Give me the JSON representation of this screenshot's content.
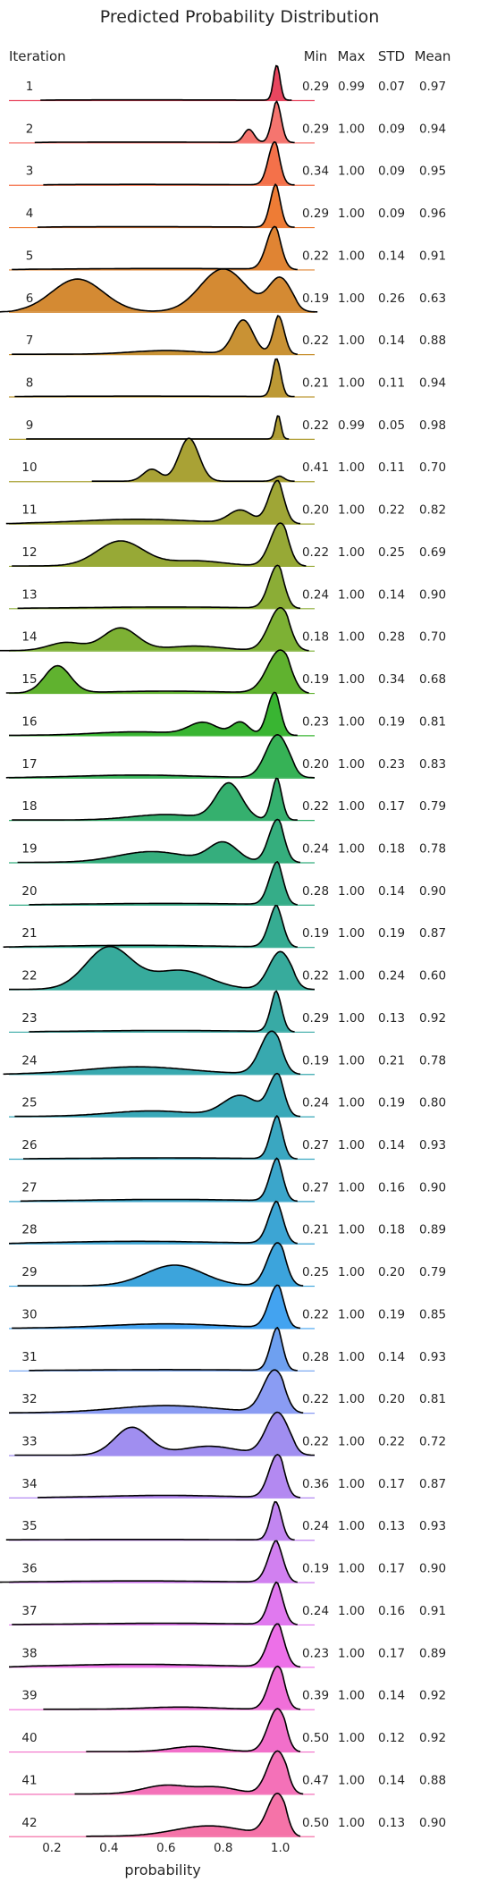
{
  "chart_data": {
    "type": "ridgeline",
    "title": "Predicted Probability Distribution",
    "xlabel": "probability",
    "row_header": "Iteration",
    "stat_headers": [
      "Min",
      "Max",
      "STD",
      "Mean"
    ],
    "xlim": [
      0.05,
      1.12
    ],
    "xticks": [
      0.2,
      0.4,
      0.6,
      0.8,
      1.0
    ],
    "xtick_labels": [
      "0.2",
      "0.4",
      "0.6",
      "0.8",
      "1.0"
    ],
    "grid": false,
    "rows": [
      {
        "label": "1",
        "min": "0.29",
        "max": "0.99",
        "std": "0.07",
        "mean": "0.97",
        "color": "#e8465f",
        "left": 0.16,
        "right": 1.04,
        "comps": [
          [
            0.99,
            0.012,
            1.0
          ],
          [
            0.5,
            0.3,
            0.006
          ]
        ]
      },
      {
        "label": "2",
        "min": "0.29",
        "max": "1.00",
        "std": "0.09",
        "mean": "0.94",
        "color": "#f5756f",
        "left": 0.14,
        "right": 1.05,
        "comps": [
          [
            0.99,
            0.018,
            1.0
          ],
          [
            0.89,
            0.018,
            0.3
          ],
          [
            0.5,
            0.3,
            0.01
          ]
        ]
      },
      {
        "label": "3",
        "min": "0.34",
        "max": "1.00",
        "std": "0.09",
        "mean": "0.95",
        "color": "#f4714a",
        "left": 0.17,
        "right": 1.05,
        "comps": [
          [
            0.98,
            0.022,
            1.0
          ],
          [
            0.5,
            0.3,
            0.01
          ]
        ]
      },
      {
        "label": "4",
        "min": "0.29",
        "max": "1.00",
        "std": "0.09",
        "mean": "0.96",
        "color": "#ee7c35",
        "left": 0.15,
        "right": 1.05,
        "comps": [
          [
            0.985,
            0.02,
            1.0
          ],
          [
            0.5,
            0.3,
            0.01
          ]
        ]
      },
      {
        "label": "5",
        "min": "0.22",
        "max": "1.00",
        "std": "0.14",
        "mean": "0.91",
        "color": "#e08433",
        "left": 0.06,
        "right": 1.06,
        "comps": [
          [
            0.98,
            0.028,
            1.0
          ],
          [
            0.6,
            0.3,
            0.025
          ]
        ]
      },
      {
        "label": "6",
        "min": "0.19",
        "max": "1.00",
        "std": "0.26",
        "mean": "0.63",
        "color": "#d48a33",
        "left": 0.01,
        "right": 1.13,
        "comps": [
          [
            0.29,
            0.09,
            0.55
          ],
          [
            0.8,
            0.08,
            0.72
          ],
          [
            1.0,
            0.04,
            0.55
          ]
        ]
      },
      {
        "label": "7",
        "min": "0.22",
        "max": "1.00",
        "std": "0.14",
        "mean": "0.88",
        "color": "#c99234",
        "left": 0.06,
        "right": 1.06,
        "comps": [
          [
            1.0,
            0.022,
            0.95
          ],
          [
            0.87,
            0.035,
            0.75
          ],
          [
            0.6,
            0.12,
            0.08
          ]
        ]
      },
      {
        "label": "8",
        "min": "0.21",
        "max": "1.00",
        "std": "0.11",
        "mean": "0.94",
        "color": "#bd9935",
        "left": 0.07,
        "right": 1.05,
        "comps": [
          [
            0.99,
            0.016,
            1.0
          ],
          [
            0.5,
            0.3,
            0.008
          ]
        ]
      },
      {
        "label": "9",
        "min": "0.22",
        "max": "0.99",
        "std": "0.05",
        "mean": "0.98",
        "color": "#b09e34",
        "left": 0.11,
        "right": 1.03,
        "comps": [
          [
            0.995,
            0.01,
            1.0
          ]
        ]
      },
      {
        "label": "10",
        "min": "0.41",
        "max": "1.00",
        "std": "0.11",
        "mean": "0.70",
        "color": "#a9a235",
        "left": 0.34,
        "right": 1.05,
        "comps": [
          [
            0.68,
            0.035,
            1.0
          ],
          [
            0.55,
            0.03,
            0.28
          ],
          [
            1.0,
            0.02,
            0.12
          ]
        ]
      },
      {
        "label": "11",
        "min": "0.20",
        "max": "1.00",
        "std": "0.22",
        "mean": "0.82",
        "color": "#9fa636",
        "left": 0.04,
        "right": 1.07,
        "comps": [
          [
            0.99,
            0.03,
            1.0
          ],
          [
            0.86,
            0.04,
            0.3
          ],
          [
            0.5,
            0.2,
            0.1
          ]
        ]
      },
      {
        "label": "12",
        "min": "0.22",
        "max": "1.00",
        "std": "0.25",
        "mean": "0.69",
        "color": "#97a936",
        "left": 0.06,
        "right": 1.09,
        "comps": [
          [
            0.44,
            0.08,
            0.58
          ],
          [
            1.0,
            0.035,
            1.0
          ],
          [
            0.7,
            0.1,
            0.12
          ]
        ]
      },
      {
        "label": "13",
        "min": "0.24",
        "max": "1.00",
        "std": "0.14",
        "mean": "0.90",
        "color": "#8bad36",
        "left": 0.08,
        "right": 1.07,
        "comps": [
          [
            0.99,
            0.03,
            1.0
          ],
          [
            0.6,
            0.25,
            0.03
          ]
        ]
      },
      {
        "label": "14",
        "min": "0.18",
        "max": "1.00",
        "std": "0.28",
        "mean": "0.70",
        "color": "#7db134",
        "left": 0.01,
        "right": 1.1,
        "comps": [
          [
            0.44,
            0.06,
            0.5
          ],
          [
            0.25,
            0.06,
            0.18
          ],
          [
            1.0,
            0.04,
            0.95
          ],
          [
            0.7,
            0.1,
            0.1
          ]
        ]
      },
      {
        "label": "15",
        "min": "0.19",
        "max": "1.00",
        "std": "0.34",
        "mean": "0.68",
        "color": "#60b22f",
        "left": 0.04,
        "right": 1.1,
        "comps": [
          [
            0.22,
            0.045,
            0.6
          ],
          [
            1.0,
            0.045,
            0.95
          ],
          [
            0.6,
            0.2,
            0.04
          ]
        ]
      },
      {
        "label": "16",
        "min": "0.23",
        "max": "1.00",
        "std": "0.19",
        "mean": "0.81",
        "color": "#39b532",
        "left": 0.05,
        "right": 1.06,
        "comps": [
          [
            0.98,
            0.025,
            1.0
          ],
          [
            0.73,
            0.05,
            0.28
          ],
          [
            0.86,
            0.03,
            0.3
          ],
          [
            0.5,
            0.15,
            0.08
          ]
        ]
      },
      {
        "label": "17",
        "min": "0.20",
        "max": "1.00",
        "std": "0.23",
        "mean": "0.83",
        "color": "#36b256",
        "left": 0.04,
        "right": 1.12,
        "comps": [
          [
            0.99,
            0.04,
            1.0
          ],
          [
            0.5,
            0.2,
            0.06
          ]
        ]
      },
      {
        "label": "18",
        "min": "0.22",
        "max": "1.00",
        "std": "0.17",
        "mean": "0.79",
        "color": "#35b06e",
        "left": 0.06,
        "right": 1.06,
        "comps": [
          [
            0.82,
            0.045,
            0.8
          ],
          [
            0.99,
            0.02,
            0.95
          ],
          [
            0.6,
            0.12,
            0.12
          ]
        ]
      },
      {
        "label": "19",
        "min": "0.24",
        "max": "1.00",
        "std": "0.18",
        "mean": "0.78",
        "color": "#35ae7d",
        "left": 0.08,
        "right": 1.07,
        "comps": [
          [
            0.99,
            0.03,
            1.0
          ],
          [
            0.8,
            0.05,
            0.45
          ],
          [
            0.55,
            0.12,
            0.25
          ]
        ]
      },
      {
        "label": "20",
        "min": "0.28",
        "max": "1.00",
        "std": "0.14",
        "mean": "0.90",
        "color": "#35ad88",
        "left": 0.12,
        "right": 1.06,
        "comps": [
          [
            0.99,
            0.028,
            1.0
          ],
          [
            0.6,
            0.25,
            0.03
          ]
        ]
      },
      {
        "label": "21",
        "min": "0.19",
        "max": "1.00",
        "std": "0.19",
        "mean": "0.87",
        "color": "#36ac92",
        "left": 0.03,
        "right": 1.06,
        "comps": [
          [
            0.99,
            0.028,
            1.0
          ],
          [
            0.5,
            0.25,
            0.04
          ]
        ]
      },
      {
        "label": "22",
        "min": "0.22",
        "max": "1.00",
        "std": "0.24",
        "mean": "0.60",
        "color": "#37ab9c",
        "left": 0.05,
        "right": 1.12,
        "comps": [
          [
            0.4,
            0.08,
            0.78
          ],
          [
            0.65,
            0.1,
            0.35
          ],
          [
            1.0,
            0.04,
            0.7
          ]
        ]
      },
      {
        "label": "23",
        "min": "0.29",
        "max": "1.00",
        "std": "0.13",
        "mean": "0.92",
        "color": "#38aaa5",
        "left": 0.12,
        "right": 1.05,
        "comps": [
          [
            0.99,
            0.022,
            1.0
          ],
          [
            0.6,
            0.25,
            0.03
          ]
        ]
      },
      {
        "label": "24",
        "min": "0.19",
        "max": "1.00",
        "std": "0.21",
        "mean": "0.78",
        "color": "#38a9af",
        "left": 0.03,
        "right": 1.07,
        "comps": [
          [
            0.97,
            0.04,
            1.0
          ],
          [
            0.5,
            0.18,
            0.17
          ]
        ]
      },
      {
        "label": "25",
        "min": "0.24",
        "max": "1.00",
        "std": "0.19",
        "mean": "0.80",
        "color": "#39a8b8",
        "left": 0.07,
        "right": 1.07,
        "comps": [
          [
            0.99,
            0.03,
            0.9
          ],
          [
            0.86,
            0.06,
            0.45
          ],
          [
            0.55,
            0.15,
            0.12
          ]
        ]
      },
      {
        "label": "26",
        "min": "0.27",
        "max": "1.00",
        "std": "0.14",
        "mean": "0.93",
        "color": "#3aa7c1",
        "left": 0.1,
        "right": 1.06,
        "comps": [
          [
            0.99,
            0.024,
            1.0
          ],
          [
            0.6,
            0.25,
            0.02
          ]
        ]
      },
      {
        "label": "27",
        "min": "0.27",
        "max": "1.00",
        "std": "0.16",
        "mean": "0.90",
        "color": "#3ba6cb",
        "left": 0.09,
        "right": 1.06,
        "comps": [
          [
            0.99,
            0.026,
            1.0
          ],
          [
            0.6,
            0.25,
            0.04
          ]
        ]
      },
      {
        "label": "28",
        "min": "0.21",
        "max": "1.00",
        "std": "0.18",
        "mean": "0.89",
        "color": "#3ca5d4",
        "left": 0.05,
        "right": 1.06,
        "comps": [
          [
            0.99,
            0.03,
            1.0
          ],
          [
            0.5,
            0.25,
            0.05
          ]
        ]
      },
      {
        "label": "29",
        "min": "0.25",
        "max": "1.00",
        "std": "0.20",
        "mean": "0.79",
        "color": "#3ca4dc",
        "left": 0.08,
        "right": 1.08,
        "comps": [
          [
            0.99,
            0.035,
            1.0
          ],
          [
            0.63,
            0.1,
            0.48
          ]
        ]
      },
      {
        "label": "30",
        "min": "0.22",
        "max": "1.00",
        "std": "0.19",
        "mean": "0.85",
        "color": "#43a3f0",
        "left": 0.06,
        "right": 1.07,
        "comps": [
          [
            0.99,
            0.03,
            1.0
          ],
          [
            0.6,
            0.2,
            0.1
          ]
        ]
      },
      {
        "label": "31",
        "min": "0.28",
        "max": "1.00",
        "std": "0.14",
        "mean": "0.93",
        "color": "#6ea0f0",
        "left": 0.12,
        "right": 1.06,
        "comps": [
          [
            0.99,
            0.024,
            1.0
          ],
          [
            0.6,
            0.25,
            0.02
          ]
        ]
      },
      {
        "label": "32",
        "min": "0.22",
        "max": "1.00",
        "std": "0.20",
        "mean": "0.81",
        "color": "#8a9cf3",
        "left": 0.05,
        "right": 1.08,
        "comps": [
          [
            0.98,
            0.04,
            1.0
          ],
          [
            0.6,
            0.18,
            0.17
          ]
        ]
      },
      {
        "label": "33",
        "min": "0.22",
        "max": "1.00",
        "std": "0.22",
        "mean": "0.72",
        "color": "#a08ef0",
        "left": 0.07,
        "right": 1.12,
        "comps": [
          [
            0.48,
            0.06,
            0.62
          ],
          [
            0.99,
            0.04,
            0.95
          ],
          [
            0.75,
            0.1,
            0.2
          ]
        ]
      },
      {
        "label": "34",
        "min": "0.36",
        "max": "1.00",
        "std": "0.17",
        "mean": "0.87",
        "color": "#b389f1",
        "left": 0.15,
        "right": 1.07,
        "comps": [
          [
            0.99,
            0.03,
            1.0
          ],
          [
            0.6,
            0.2,
            0.05
          ]
        ]
      },
      {
        "label": "35",
        "min": "0.24",
        "max": "1.00",
        "std": "0.13",
        "mean": "0.93",
        "color": "#c286f1",
        "left": 0.04,
        "right": 1.05,
        "comps": [
          [
            0.99,
            0.022,
            1.0
          ],
          [
            0.5,
            0.25,
            0.01
          ]
        ]
      },
      {
        "label": "36",
        "min": "0.19",
        "max": "1.00",
        "std": "0.17",
        "mean": "0.90",
        "color": "#d180f0",
        "left": 0.01,
        "right": 1.06,
        "comps": [
          [
            0.99,
            0.03,
            1.0
          ],
          [
            0.5,
            0.25,
            0.03
          ]
        ]
      },
      {
        "label": "37",
        "min": "0.24",
        "max": "1.00",
        "std": "0.16",
        "mean": "0.91",
        "color": "#e079ef",
        "left": 0.06,
        "right": 1.06,
        "comps": [
          [
            0.99,
            0.028,
            1.0
          ],
          [
            0.6,
            0.25,
            0.03
          ]
        ]
      },
      {
        "label": "38",
        "min": "0.23",
        "max": "1.00",
        "std": "0.17",
        "mean": "0.89",
        "color": "#ed70e8",
        "left": 0.05,
        "right": 1.07,
        "comps": [
          [
            0.99,
            0.032,
            1.0
          ],
          [
            0.5,
            0.25,
            0.06
          ]
        ]
      },
      {
        "label": "39",
        "min": "0.39",
        "max": "1.00",
        "std": "0.14",
        "mean": "0.92",
        "color": "#f06fd9",
        "left": 0.17,
        "right": 1.07,
        "comps": [
          [
            0.99,
            0.03,
            1.0
          ],
          [
            0.65,
            0.12,
            0.05
          ]
        ]
      },
      {
        "label": "40",
        "min": "0.50",
        "max": "1.00",
        "std": "0.12",
        "mean": "0.92",
        "color": "#f26fca",
        "left": 0.32,
        "right": 1.07,
        "comps": [
          [
            0.99,
            0.033,
            1.0
          ],
          [
            0.7,
            0.08,
            0.12
          ]
        ]
      },
      {
        "label": "41",
        "min": "0.47",
        "max": "1.00",
        "std": "0.14",
        "mean": "0.88",
        "color": "#f471b8",
        "left": 0.28,
        "right": 1.08,
        "comps": [
          [
            0.99,
            0.035,
            1.0
          ],
          [
            0.6,
            0.08,
            0.2
          ],
          [
            0.78,
            0.07,
            0.15
          ]
        ]
      },
      {
        "label": "42",
        "min": "0.50",
        "max": "1.00",
        "std": "0.13",
        "mean": "0.90",
        "color": "#f573a8",
        "left": 0.32,
        "right": 1.07,
        "comps": [
          [
            0.99,
            0.035,
            1.0
          ],
          [
            0.75,
            0.12,
            0.25
          ]
        ]
      }
    ]
  }
}
